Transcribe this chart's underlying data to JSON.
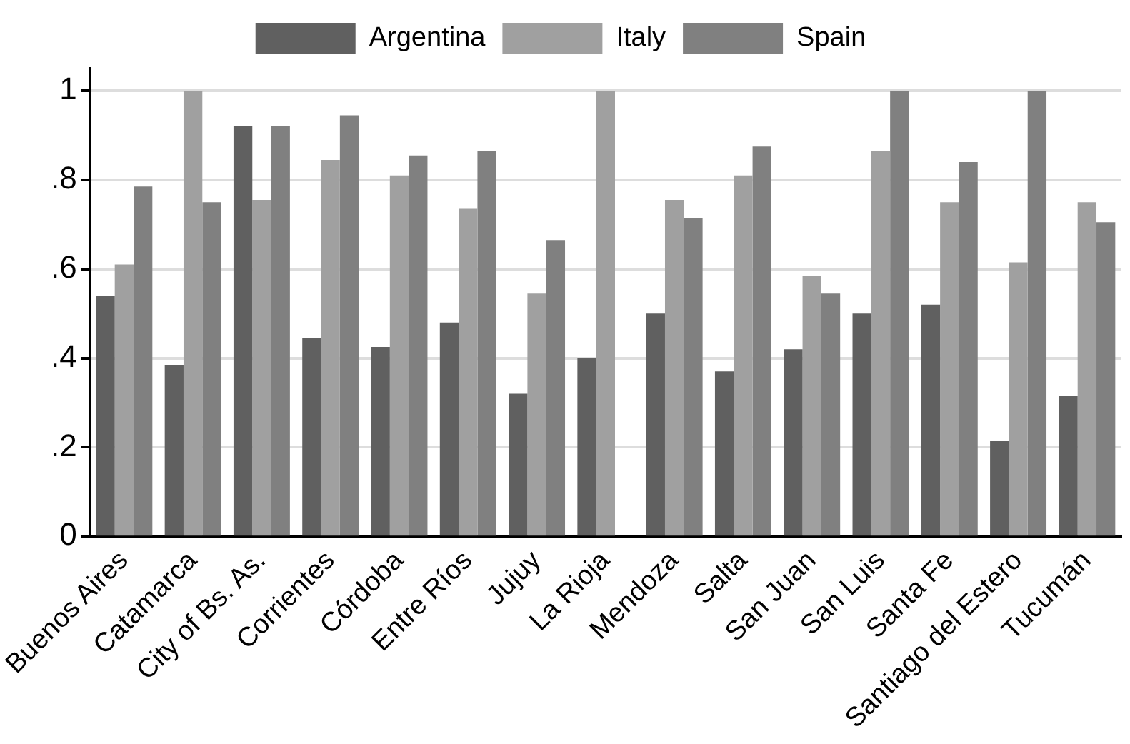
{
  "chart_data": {
    "type": "bar",
    "categories": [
      "Buenos Aires",
      "Catamarca",
      "City of Bs. As.",
      "Corrientes",
      "Córdoba",
      "Entre Ríos",
      "Jujuy",
      "La Rioja",
      "Mendoza",
      "Salta",
      "San Juan",
      "San Luis",
      "Santa Fe",
      "Santiago del Estero",
      "Tucumán"
    ],
    "series": [
      {
        "name": "Argentina",
        "color": "#606060",
        "values": [
          0.54,
          0.385,
          0.92,
          0.445,
          0.425,
          0.48,
          0.32,
          0.4,
          0.5,
          0.37,
          0.42,
          0.5,
          0.52,
          0.215,
          0.315
        ]
      },
      {
        "name": "Italy",
        "color": "#a0a0a0",
        "values": [
          0.61,
          1.0,
          0.755,
          0.845,
          0.81,
          0.735,
          0.545,
          1.0,
          0.755,
          0.81,
          0.585,
          0.865,
          0.75,
          0.615,
          0.75
        ]
      },
      {
        "name": "Spain",
        "color": "#808080",
        "values": [
          0.785,
          0.75,
          0.92,
          0.945,
          0.855,
          0.865,
          0.665,
          null,
          0.715,
          0.875,
          0.545,
          1.0,
          0.84,
          1.0,
          0.705
        ]
      }
    ],
    "ylim": [
      0,
      1.05
    ],
    "yticks": [
      {
        "value": 0,
        "label": "0"
      },
      {
        "value": 0.2,
        "label": ".2"
      },
      {
        "value": 0.4,
        "label": ".4"
      },
      {
        "value": 0.6,
        "label": ".6"
      },
      {
        "value": 0.8,
        "label": ".8"
      },
      {
        "value": 1,
        "label": "1"
      }
    ],
    "grid": "y",
    "legend": "top"
  }
}
